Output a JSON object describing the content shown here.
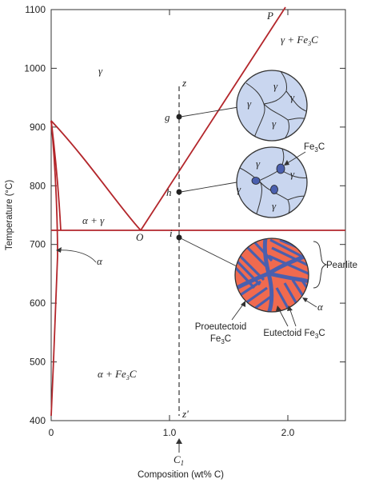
{
  "axes": {
    "x_title": "Composition (wt% C)",
    "y_title": "Temperature (°C)",
    "y_ticks": [
      "1100",
      "1000",
      "900",
      "800",
      "700",
      "600",
      "500",
      "400"
    ],
    "x_ticks": [
      "0",
      "1.0",
      "2.0"
    ],
    "c1_label": "C",
    "c1_sub": "1"
  },
  "regions": {
    "gamma": "γ",
    "alpha_gamma": "α + γ",
    "alpha_fe3c": "α + Fe",
    "alpha_fe3c_tail": "C",
    "gamma_fe3c": "γ + Fe",
    "gamma_fe3c_tail": "C",
    "sub3": "3",
    "alpha_left": "α"
  },
  "points": {
    "P": "P",
    "O": "O",
    "g": "g",
    "h": "h",
    "i": "i",
    "z": "z",
    "z_prime": "z'"
  },
  "micro": {
    "gamma": "γ",
    "fe3c_pre": "Fe",
    "fe3c_sub": "3",
    "fe3c_post": "C",
    "pearlite": "Pearlite",
    "alpha": "α",
    "pro_line1": "Proeutectoid",
    "pro_line2_pre": "Fe",
    "pro_line2_sub": "3",
    "pro_line2_post": "C",
    "eut_pre": "Eutectoid Fe",
    "eut_sub": "3",
    "eut_post": "C"
  },
  "colors": {
    "phase_line": "#b3262b",
    "grain_fill": "#c9d6ef",
    "cementite": "#4a5fae",
    "ferrite": "#f06a4f"
  }
}
